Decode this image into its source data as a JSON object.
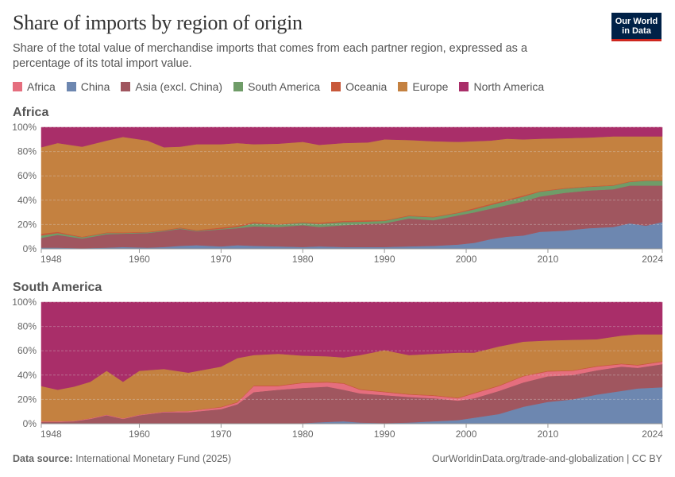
{
  "header": {
    "title": "Share of imports by region of origin",
    "subtitle": "Share of the total value of merchandise imports that comes from each partner region, expressed as a percentage of its total import value.",
    "logo_text": "Our World in Data"
  },
  "legend": [
    {
      "name": "Africa",
      "color": "#E56E7E"
    },
    {
      "name": "China",
      "color": "#6D87B0"
    },
    {
      "name": "Asia (excl. China)",
      "color": "#A0565F"
    },
    {
      "name": "South America",
      "color": "#6F9C68"
    },
    {
      "name": "Oceania",
      "color": "#C8583A"
    },
    {
      "name": "Europe",
      "color": "#C48140"
    },
    {
      "name": "North America",
      "color": "#A92E69"
    }
  ],
  "footer": {
    "source_label": "Data source:",
    "source": "International Monetary Fund (2025)",
    "url_license": "OurWorldinData.org/trade-and-globalization | CC BY"
  },
  "chart_data": [
    {
      "type": "area",
      "stacked": true,
      "title": "Africa",
      "ylim": [
        0,
        100
      ],
      "yticks": [
        "0%",
        "20%",
        "40%",
        "60%",
        "80%",
        "100%"
      ],
      "xticks": [
        "1948",
        "1960",
        "1970",
        "1980",
        "1990",
        "2000",
        "2010",
        "2024"
      ],
      "grid": true,
      "x": [
        1948,
        1950,
        1953,
        1956,
        1958,
        1961,
        1963,
        1965,
        1967,
        1970,
        1972,
        1974,
        1977,
        1980,
        1982,
        1985,
        1988,
        1990,
        1993,
        1996,
        1999,
        2001,
        2003,
        2005,
        2007,
        2009,
        2012,
        2015,
        2018,
        2020,
        2022,
        2024
      ],
      "series": [
        {
          "name": "China",
          "values": [
            1,
            1,
            0.5,
            1,
            1.5,
            1,
            1.5,
            2.5,
            3,
            2,
            3,
            2.5,
            2,
            1.5,
            2,
            1.5,
            1.5,
            1.5,
            2,
            2.5,
            3.5,
            5,
            8,
            10,
            11,
            14,
            15,
            17,
            18,
            21,
            19,
            22
          ]
        },
        {
          "name": "Asia (excl. China)",
          "values": [
            8,
            10.5,
            8,
            11,
            11,
            12,
            13,
            14,
            11.5,
            14,
            14,
            16,
            16,
            18,
            16,
            18,
            19,
            19.5,
            23,
            21,
            24,
            25,
            25,
            26,
            28,
            29,
            31,
            31,
            31,
            31,
            33,
            30
          ]
        },
        {
          "name": "South America",
          "values": [
            2,
            1.5,
            1,
            1,
            0.5,
            0.5,
            0.5,
            0.5,
            0.5,
            0.5,
            1,
            2.5,
            2,
            2,
            2.5,
            2.5,
            2,
            2,
            2,
            2.5,
            2,
            2.5,
            3,
            3.5,
            4,
            4,
            3.5,
            3,
            3,
            3,
            4,
            4
          ]
        },
        {
          "name": "Oceania",
          "values": [
            1.5,
            1,
            0.5,
            0.5,
            0.5,
            0.5,
            0.5,
            0.5,
            0.5,
            1,
            1,
            1,
            0.5,
            0.5,
            1,
            1,
            1,
            0.5,
            0.5,
            0.5,
            0.5,
            1,
            1,
            1,
            1,
            0.5,
            0.5,
            0.5,
            0.5,
            0.5,
            0.5,
            0.5
          ]
        },
        {
          "name": "Europe",
          "values": [
            71,
            73,
            74,
            75.5,
            78.5,
            75,
            68,
            66.5,
            70.5,
            68.5,
            68,
            64,
            66,
            66,
            64,
            64,
            64,
            66.5,
            62,
            62,
            58,
            55,
            52,
            50,
            46,
            43,
            41,
            40,
            40,
            37,
            36,
            36
          ]
        },
        {
          "name": "North America",
          "values": [
            16.5,
            13,
            16,
            11,
            8,
            11,
            16.5,
            16,
            14,
            14,
            13,
            14,
            13.5,
            12,
            14.5,
            13,
            12.5,
            10,
            10.5,
            11.5,
            12,
            11.5,
            11,
            9.5,
            10,
            9.5,
            9,
            8.5,
            7.5,
            7.5,
            7.5,
            7.5
          ]
        }
      ]
    },
    {
      "type": "area",
      "stacked": true,
      "title": "South America",
      "ylim": [
        0,
        100
      ],
      "yticks": [
        "0%",
        "20%",
        "40%",
        "60%",
        "80%",
        "100%"
      ],
      "xticks": [
        "1948",
        "1960",
        "1970",
        "1980",
        "1990",
        "2000",
        "2010",
        "2024"
      ],
      "grid": true,
      "x": [
        1948,
        1950,
        1952,
        1954,
        1956,
        1958,
        1960,
        1963,
        1966,
        1970,
        1972,
        1974,
        1977,
        1980,
        1983,
        1985,
        1987,
        1990,
        1993,
        1996,
        1999,
        2001,
        2004,
        2007,
        2010,
        2013,
        2016,
        2019,
        2021,
        2024
      ],
      "series": [
        {
          "name": "China",
          "values": [
            0,
            0,
            0,
            0,
            0,
            0,
            0,
            0,
            0,
            0,
            0,
            0,
            0,
            0.5,
            1.5,
            2,
            1,
            0.5,
            1,
            2,
            3,
            5,
            8,
            14,
            18,
            20,
            24,
            27,
            29,
            30
          ]
        },
        {
          "name": "Asia (excl. China)",
          "values": [
            1.5,
            1.5,
            2,
            4,
            7,
            4,
            7,
            9.5,
            9.5,
            12,
            16,
            26,
            28,
            29,
            29,
            26,
            24,
            23,
            21,
            19,
            16,
            16,
            19,
            20,
            21,
            20,
            20,
            20,
            17,
            19
          ]
        },
        {
          "name": "Africa",
          "values": [
            0.5,
            0.5,
            0.5,
            0.5,
            0.5,
            0.5,
            0.5,
            0.5,
            1,
            1.5,
            1.5,
            5,
            3,
            4,
            3.5,
            5,
            3,
            2.5,
            2,
            2,
            2,
            4,
            4,
            5,
            4,
            3.5,
            3,
            2,
            2,
            2
          ]
        },
        {
          "name": "Oceania",
          "values": [
            0,
            0,
            0,
            0,
            0,
            0,
            0,
            0,
            0,
            0.5,
            0.5,
            0.5,
            0.5,
            0.5,
            0.5,
            0.5,
            0.5,
            0.5,
            0.5,
            0.5,
            0.5,
            0.5,
            0.5,
            0.5,
            0.5,
            0.5,
            0.5,
            0.5,
            0.5,
            0.5
          ]
        },
        {
          "name": "Europe",
          "values": [
            29,
            26,
            28,
            30,
            36,
            30,
            36,
            35,
            31.5,
            33,
            36,
            25,
            26,
            22,
            21,
            21,
            28,
            34,
            32,
            34,
            37,
            33,
            32,
            28,
            25,
            25,
            22,
            23,
            25,
            22
          ]
        },
        {
          "name": "North America",
          "values": [
            69,
            72,
            69.5,
            65.5,
            56.5,
            65.5,
            56.5,
            55,
            58,
            53,
            46,
            43.5,
            42.5,
            44,
            44.5,
            45.5,
            43.5,
            39.5,
            43.5,
            42.5,
            41.5,
            41.5,
            36.5,
            32.5,
            31.5,
            31,
            30.5,
            27.5,
            26.5,
            26.5
          ]
        }
      ]
    }
  ]
}
